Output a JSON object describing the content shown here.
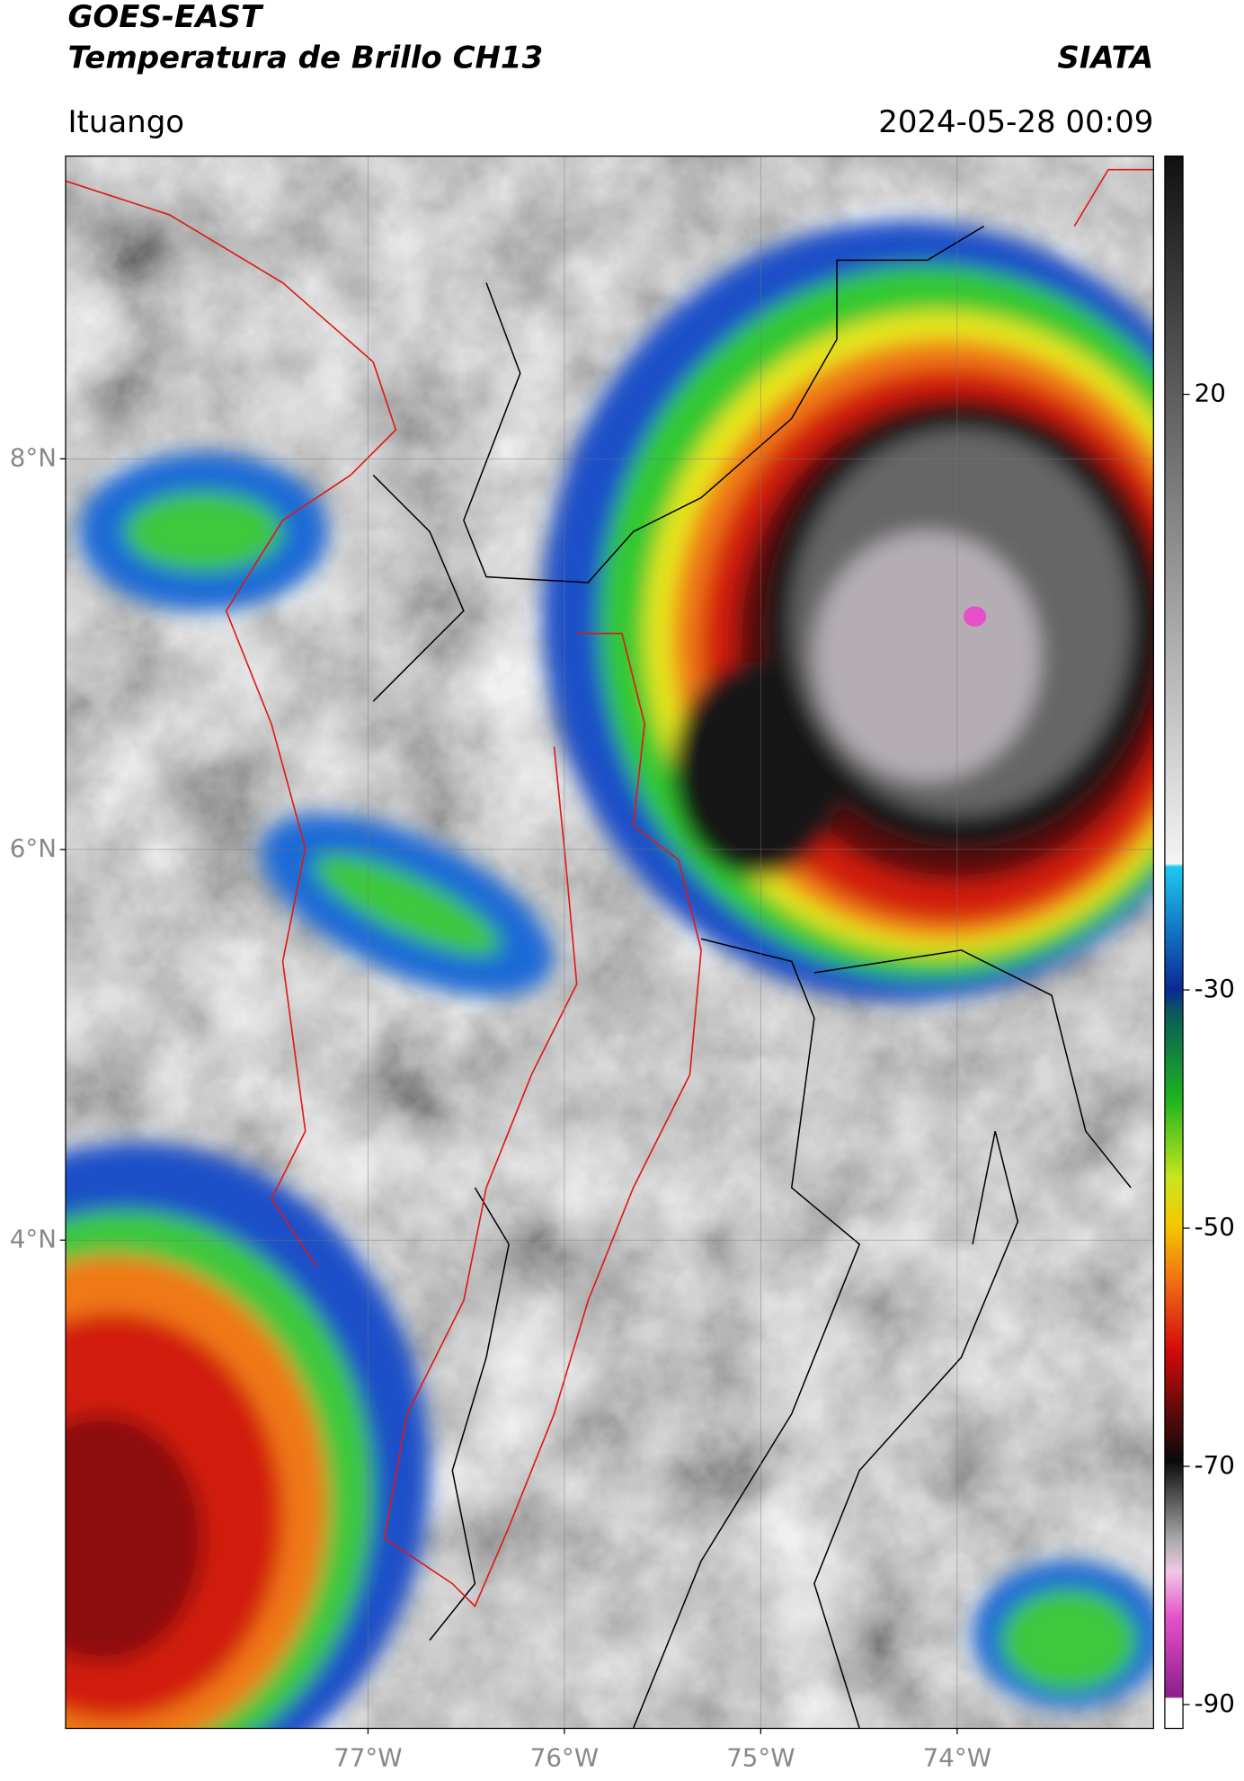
{
  "header": {
    "title": "GOES-EAST",
    "subtitle": "Temperatura de Brillo CH13",
    "brand": "SIATA",
    "location": "Ituango",
    "datetime": "2024-05-28 00:09"
  },
  "map": {
    "lat_range": [
      1.5,
      9.55
    ],
    "lon_range": [
      -78.54,
      -73.0
    ],
    "lat_ticks": [
      {
        "value": 8,
        "label": "8°N"
      },
      {
        "value": 6,
        "label": "6°N"
      },
      {
        "value": 4,
        "label": "4°N"
      }
    ],
    "lon_ticks": [
      {
        "value": -77,
        "label": "77°W"
      },
      {
        "value": -76,
        "label": "76°W"
      },
      {
        "value": -75,
        "label": "75°W"
      },
      {
        "value": -74,
        "label": "74°W"
      }
    ],
    "grid": true
  },
  "colorbar": {
    "range": [
      -92,
      40
    ],
    "ticks": [
      20,
      -30,
      -50,
      -70,
      -90
    ]
  }
}
